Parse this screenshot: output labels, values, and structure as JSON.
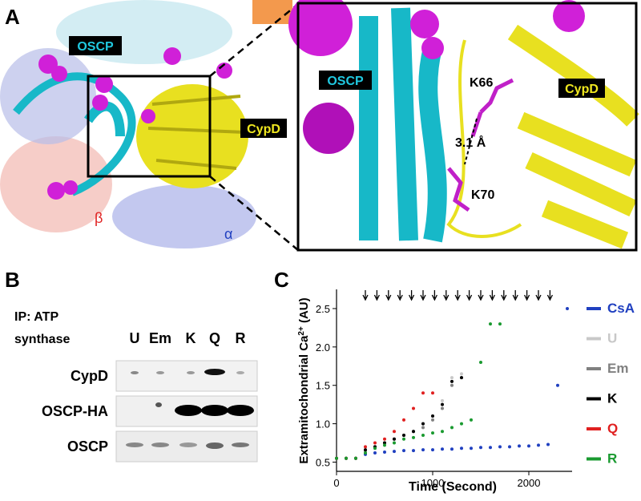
{
  "panel_a": {
    "label": "A",
    "oscp_left": "OSCP",
    "cypd_left": "CypD",
    "beta": "β",
    "alpha": "α",
    "oscp_right": "OSCP",
    "k66": "K66",
    "cypd_right": "CypD",
    "distance": "3.1 Å",
    "k70": "K70"
  },
  "panel_b": {
    "label": "B",
    "ip_line1": "IP: ATP",
    "ip_line2": "synthase",
    "lanes": [
      "U",
      "Em",
      "K",
      "Q",
      "R"
    ],
    "rows": [
      "CypD",
      "OSCP-HA",
      "OSCP"
    ]
  },
  "chart_data": {
    "type": "scatter",
    "panel_label": "C",
    "ylabel": {
      "text": "Extramitochondrial Ca",
      "sup": "2+",
      "suffix": " (AU)"
    },
    "xlabel": "Time (Second)",
    "xlim": [
      0,
      2450
    ],
    "ylim": [
      0.38,
      2.75
    ],
    "xticks": [
      0,
      1000,
      2000
    ],
    "yticks": [
      0.5,
      {
        "value": 1,
        "label": "1.0"
      },
      1.5,
      {
        "value": 2,
        "label": "2.0"
      },
      2.5
    ],
    "pulses": [
      300,
      420,
      540,
      660,
      780,
      900,
      1020,
      1140,
      1260,
      1380,
      1500,
      1620,
      1740,
      1860,
      1980,
      2100,
      2220
    ],
    "x": [
      0,
      100,
      200,
      300,
      400,
      500,
      600,
      700,
      800,
      900,
      1000,
      1100,
      1200,
      1300,
      1400,
      1500,
      1600,
      1700,
      1800,
      1900,
      2000,
      2100,
      2200,
      2300,
      2400
    ],
    "series": [
      {
        "name": "CsA",
        "color": "#2040c0",
        "values": [
          0.55,
          0.55,
          0.55,
          0.6,
          0.62,
          0.63,
          0.64,
          0.65,
          0.65,
          0.66,
          0.66,
          0.67,
          0.67,
          0.68,
          0.68,
          0.69,
          0.69,
          0.7,
          0.7,
          0.71,
          0.71,
          0.72,
          0.73,
          1.5,
          2.5
        ]
      },
      {
        "name": "U",
        "color": "#c8c8c8",
        "values": [
          0.55,
          0.55,
          0.55,
          0.65,
          0.7,
          0.75,
          0.8,
          0.85,
          0.9,
          1.0,
          1.1,
          1.3,
          1.6,
          1.65,
          null,
          null,
          null,
          null,
          null,
          null,
          null,
          null,
          null,
          null,
          null
        ]
      },
      {
        "name": "Em",
        "color": "#808080",
        "values": [
          0.55,
          0.55,
          0.55,
          0.65,
          0.7,
          0.75,
          0.8,
          0.85,
          0.9,
          0.95,
          1.05,
          1.2,
          1.5,
          1.6,
          null,
          null,
          null,
          null,
          null,
          null,
          null,
          null,
          null,
          null,
          null
        ]
      },
      {
        "name": "K",
        "color": "#000000",
        "values": [
          0.55,
          0.55,
          0.55,
          0.66,
          0.7,
          0.75,
          0.8,
          0.85,
          0.9,
          1.0,
          1.1,
          1.25,
          1.55,
          1.6,
          null,
          null,
          null,
          null,
          null,
          null,
          null,
          null,
          null,
          null,
          null
        ]
      },
      {
        "name": "Q",
        "color": "#e02020",
        "values": [
          0.55,
          0.55,
          0.55,
          0.7,
          0.75,
          0.8,
          0.9,
          1.05,
          1.2,
          1.4,
          1.4,
          null,
          null,
          null,
          null,
          null,
          null,
          null,
          null,
          null,
          null,
          null,
          null,
          null,
          null
        ]
      },
      {
        "name": "R",
        "color": "#1a9a30",
        "values": [
          0.55,
          0.55,
          0.55,
          0.62,
          0.68,
          0.72,
          0.75,
          0.8,
          0.82,
          0.85,
          0.88,
          0.9,
          0.95,
          1.0,
          1.05,
          1.8,
          2.3,
          2.3,
          null,
          null,
          null,
          null,
          null,
          null,
          null
        ]
      }
    ]
  }
}
